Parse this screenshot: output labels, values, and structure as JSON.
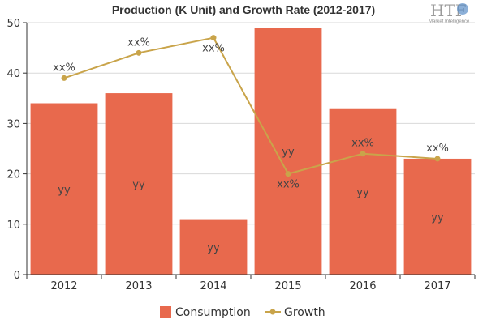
{
  "logo": {
    "brand": "HTF",
    "tagline": "Market Intelligence"
  },
  "colors": {
    "bar": "#e8694d",
    "line": "#c9a44a",
    "axis": "#333333",
    "grid": "#d9d9d9"
  },
  "chart_data": {
    "type": "bar",
    "title": "Production (K Unit) and Growth Rate (2012-2017)",
    "xlabel": "",
    "ylabel": "",
    "categories": [
      "2012",
      "2013",
      "2014",
      "2015",
      "2016",
      "2017"
    ],
    "ylim": [
      0,
      50
    ],
    "yticks": [
      0,
      10,
      20,
      30,
      40,
      50
    ],
    "grid": "horizontal",
    "legend_position": "bottom",
    "series": [
      {
        "name": "Consumption",
        "type": "bar",
        "values": [
          34,
          36,
          11,
          49,
          33,
          23
        ],
        "labels": [
          "yy",
          "yy",
          "yy",
          "yy",
          "yy",
          "yy"
        ]
      },
      {
        "name": "Growth",
        "type": "line",
        "values": [
          39,
          44,
          47,
          20,
          24,
          23
        ],
        "labels": [
          "xx%",
          "xx%",
          "xx%",
          "xx%",
          "xx%",
          "xx%"
        ]
      }
    ]
  }
}
